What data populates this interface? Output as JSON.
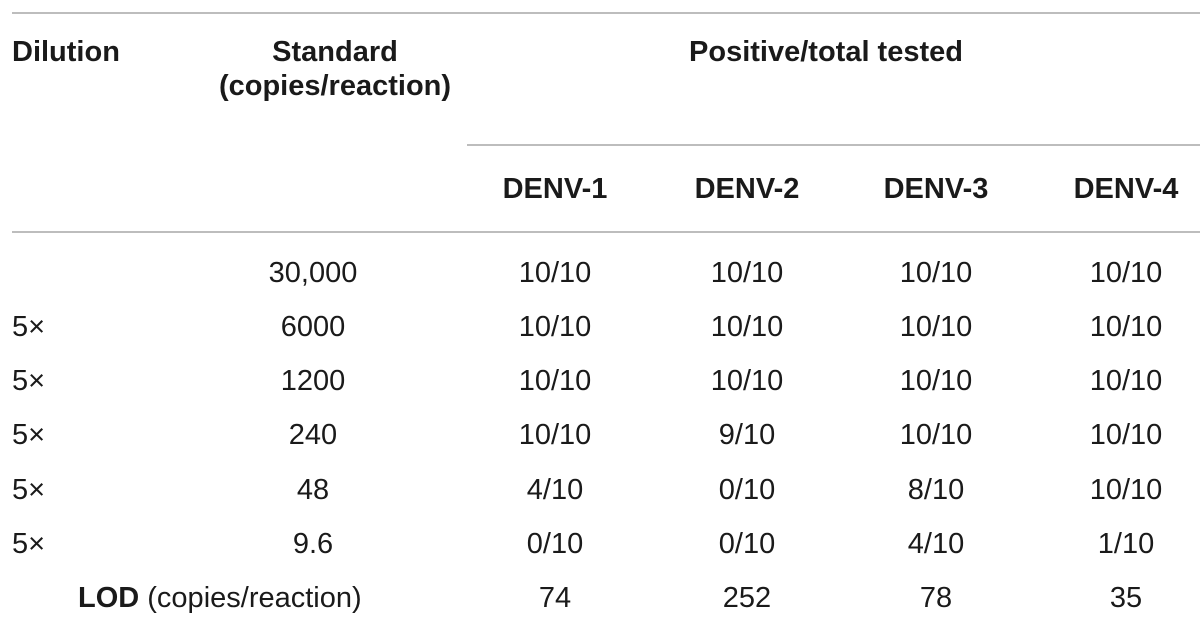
{
  "table": {
    "headers": {
      "dilution": "Dilution",
      "standard_line1": "Standard",
      "standard_line2": "(copies/reaction)",
      "group": "Positive/total tested",
      "serotypes": [
        "DENV-1",
        "DENV-2",
        "DENV-3",
        "DENV-4"
      ]
    },
    "rows": [
      {
        "dilution": "",
        "standard": "30,000",
        "values": [
          "10/10",
          "10/10",
          "10/10",
          "10/10"
        ]
      },
      {
        "dilution": "5×",
        "standard": "6000",
        "values": [
          "10/10",
          "10/10",
          "10/10",
          "10/10"
        ]
      },
      {
        "dilution": "5×",
        "standard": "1200",
        "values": [
          "10/10",
          "10/10",
          "10/10",
          "10/10"
        ]
      },
      {
        "dilution": "5×",
        "standard": "240",
        "values": [
          "10/10",
          "9/10",
          "10/10",
          "10/10"
        ]
      },
      {
        "dilution": "5×",
        "standard": "48",
        "values": [
          "4/10",
          "0/10",
          "8/10",
          "10/10"
        ]
      },
      {
        "dilution": "5×",
        "standard": "9.6",
        "values": [
          "0/10",
          "0/10",
          "4/10",
          "1/10"
        ]
      }
    ],
    "lod": {
      "label_bold": "LOD",
      "label_rest": " (copies/reaction)",
      "values": [
        "74",
        "252",
        "78",
        "35"
      ]
    }
  }
}
